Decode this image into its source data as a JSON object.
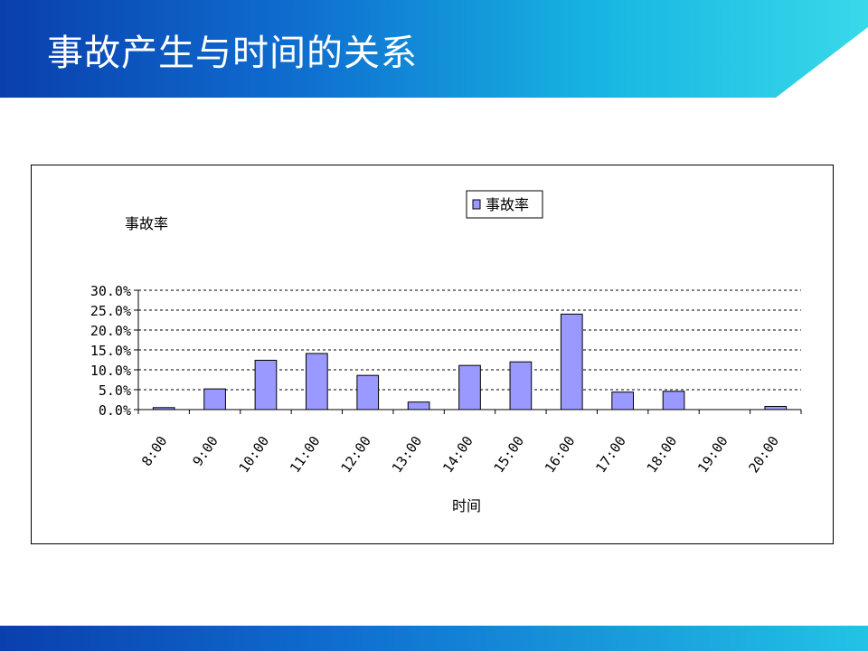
{
  "slide": {
    "title": "事故产生与时间的关系"
  },
  "chart_data": {
    "type": "bar",
    "categories": [
      "8:00",
      "9:00",
      "10:00",
      "11:00",
      "12:00",
      "13:00",
      "14:00",
      "15:00",
      "16:00",
      "17:00",
      "18:00",
      "19:00",
      "20:00"
    ],
    "series": [
      {
        "name": "事故率",
        "values": [
          0.5,
          5.2,
          12.4,
          14.1,
          8.6,
          1.9,
          11.1,
          12.0,
          24.0,
          4.4,
          4.6,
          0.0,
          0.8
        ]
      }
    ],
    "ylabel": "事故率",
    "xlabel": "时间",
    "yticks": [
      "0.0%",
      "5.0%",
      "10.0%",
      "15.0%",
      "20.0%",
      "25.0%",
      "30.0%"
    ],
    "ylim": [
      0,
      30
    ],
    "grid": true,
    "legend": "top-center",
    "colors": {
      "bar": "#9999ff",
      "bar_border": "#000000"
    }
  }
}
